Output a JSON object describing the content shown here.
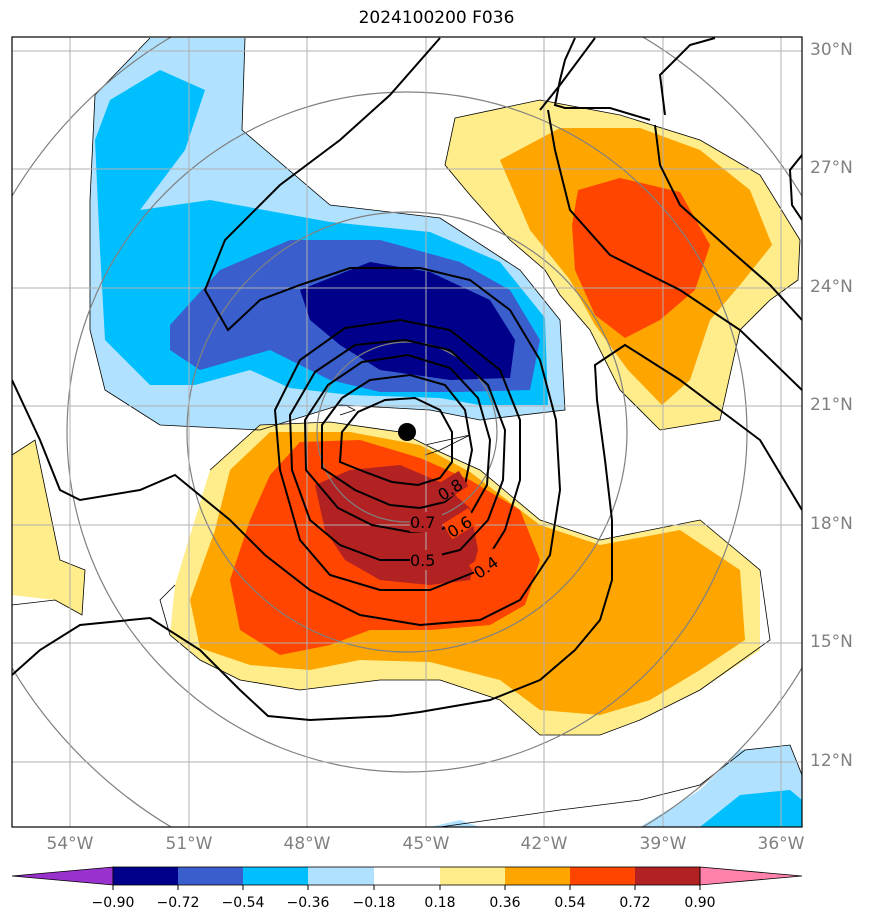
{
  "title": "2024100200 F036",
  "lat_labels": [
    "30°N",
    "27°N",
    "24°N",
    "21°N",
    "18°N",
    "15°N",
    "12°N"
  ],
  "lon_labels": [
    "54°W",
    "51°W",
    "48°W",
    "45°W",
    "42°W",
    "39°W",
    "36°W"
  ],
  "contour_labels": [
    "0.8",
    "0.7",
    "0.6",
    "0.5",
    "0.4"
  ],
  "colorbar": {
    "ticks": [
      "−0.90",
      "−0.72",
      "−0.54",
      "−0.36",
      "−0.18",
      "0.18",
      "0.36",
      "0.54",
      "0.72",
      "0.90"
    ],
    "colors": [
      "#9932cc",
      "#00008b",
      "#3a5fcd",
      "#00bfff",
      "#b0e2ff",
      "#ffffff",
      "#ffec8b",
      "#ffa500",
      "#ff4500",
      "#b22222",
      "#ff82ab"
    ]
  },
  "storm_center": {
    "lat": "20.3°N",
    "lon": "45.5°W"
  }
}
